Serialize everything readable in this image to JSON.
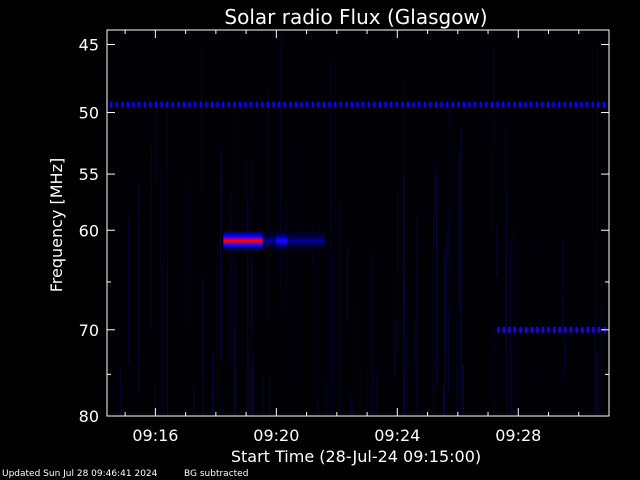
{
  "chart_data": {
    "type": "heatmap",
    "title": "Solar radio Flux (Glasgow)",
    "xlabel": "Start Time (28-Jul-24 09:15:00)",
    "ylabel": "Frequency [MHz]",
    "x_range_minutes": [
      14.4,
      31.0
    ],
    "x_ticks": [
      {
        "minute": 16,
        "label": "09:16"
      },
      {
        "minute": 20,
        "label": "09:20"
      },
      {
        "minute": 24,
        "label": "09:24"
      },
      {
        "minute": 28,
        "label": "09:28"
      }
    ],
    "y_range_mhz": [
      44,
      80
    ],
    "y_scale": "log",
    "y_ticks": [
      {
        "mhz": 45,
        "label": "45"
      },
      {
        "mhz": 50,
        "label": "50"
      },
      {
        "mhz": 55,
        "label": "55"
      },
      {
        "mhz": 60,
        "label": "60"
      },
      {
        "mhz": 70,
        "label": "70"
      },
      {
        "mhz": 80,
        "label": "80"
      }
    ],
    "colormap": [
      "#000000",
      "#000050",
      "#0000ff",
      "#6a00c8",
      "#ff0000"
    ],
    "features": [
      {
        "name": "burst",
        "t_start_min": 18.25,
        "t_end_min": 19.55,
        "mhz": 61.0,
        "intensity": 1.0
      },
      {
        "name": "burst-tail",
        "t_start_min": 19.55,
        "t_end_min": 21.6,
        "mhz": 61.0,
        "intensity": 0.35
      },
      {
        "name": "burst-spot",
        "t_start_min": 20.0,
        "t_end_min": 20.35,
        "mhz": 61.0,
        "intensity": 0.6
      },
      {
        "name": "rfi-49mhz",
        "t_start_min": 14.5,
        "t_end_min": 30.95,
        "mhz": 49.4,
        "intensity": 0.55
      },
      {
        "name": "rfi-70mhz",
        "t_start_min": 27.3,
        "t_end_min": 30.95,
        "mhz": 70.0,
        "intensity": 0.6
      }
    ],
    "grid": false
  },
  "footer": {
    "updated": "Updated Sun Jul 28 09:46:41 2024",
    "background_note": "BG subtracted"
  }
}
